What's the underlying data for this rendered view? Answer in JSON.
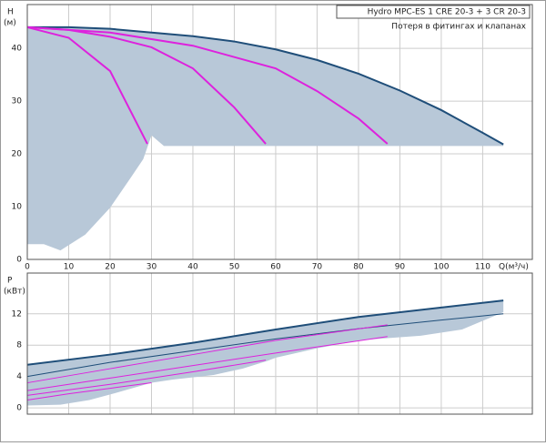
{
  "chart_data": [
    {
      "type": "line",
      "ylabel": "H",
      "yunit": "(м)",
      "xlabel": "Q(м³/ч)",
      "legend_title": "Hydro MPC-ES 1 CRE 20-3  +  3 CR 20-3",
      "legend_subtitle": "Потеря в фитингах и клапанах",
      "xlim": [
        0,
        122
      ],
      "ylim": [
        0,
        48.3
      ],
      "xticks": [
        0,
        10,
        20,
        30,
        40,
        50,
        60,
        70,
        80,
        90,
        100,
        110
      ],
      "yticks": [
        0,
        10,
        20,
        30,
        40
      ],
      "show_xtick_labels": true,
      "grid": true,
      "regions": [
        {
          "color": "#b8c8d8",
          "x": [
            0,
            10,
            20,
            30,
            40,
            50,
            60,
            70,
            80,
            90,
            100,
            110,
            115,
            115,
            40,
            33,
            30,
            28,
            25,
            20,
            14,
            8,
            4,
            0
          ],
          "values": [
            44,
            44,
            43.7,
            43,
            42.3,
            41.3,
            39.8,
            37.8,
            35.2,
            32,
            28.3,
            24,
            21.8,
            21.5,
            21.5,
            21.5,
            23.5,
            19,
            15.5,
            9.8,
            4.7,
            1.7,
            2.9,
            2.9
          ]
        }
      ],
      "series": [
        {
          "color": "#1f4e79",
          "width": 2,
          "x": [
            0,
            10,
            20,
            30,
            40,
            50,
            60,
            70,
            80,
            90,
            100,
            110,
            115
          ],
          "values": [
            44,
            44,
            43.7,
            43,
            42.3,
            41.3,
            39.8,
            37.8,
            35.2,
            32,
            28.3,
            24,
            21.8
          ]
        },
        {
          "color": "#dd22dd",
          "width": 2,
          "x": [
            0,
            10,
            20,
            29
          ],
          "values": [
            44,
            42,
            35.7,
            21.9
          ]
        },
        {
          "color": "#dd22dd",
          "width": 2,
          "x": [
            0,
            10,
            20,
            30,
            40,
            50,
            57.6
          ],
          "values": [
            44,
            43.5,
            42.2,
            40.2,
            36.2,
            28.8,
            21.9
          ]
        },
        {
          "color": "#dd22dd",
          "width": 2,
          "x": [
            0,
            20,
            40,
            60,
            70,
            80,
            87
          ],
          "values": [
            44,
            43,
            40.5,
            36.2,
            31.9,
            26.7,
            21.9
          ]
        }
      ]
    },
    {
      "type": "line",
      "ylabel": "P",
      "yunit": "(кВт)",
      "xlim": [
        0,
        122
      ],
      "ylim": [
        -0.8,
        17.2
      ],
      "xticks": [
        0,
        10,
        20,
        30,
        40,
        50,
        60,
        70,
        80,
        90,
        100,
        110
      ],
      "yticks": [
        0,
        4,
        8,
        12
      ],
      "show_xtick_labels": false,
      "grid": true,
      "regions": [
        {
          "color": "#b8c8d8",
          "x": [
            0,
            20,
            40,
            60,
            80,
            100,
            115,
            115,
            105,
            95,
            87,
            80,
            70,
            60,
            58,
            52,
            45,
            35,
            30,
            22,
            15,
            8,
            0
          ],
          "values": [
            5.5,
            6.8,
            8.3,
            10,
            11.6,
            12.8,
            13.7,
            12.2,
            10,
            9.2,
            8.9,
            8.6,
            7.6,
            6.4,
            6,
            5,
            4.2,
            3.6,
            3.2,
            2,
            1,
            0.4,
            0.3
          ]
        }
      ],
      "series": [
        {
          "color": "#1f4e79",
          "width": 2,
          "x": [
            0,
            20,
            40,
            60,
            80,
            100,
            115
          ],
          "values": [
            5.5,
            6.8,
            8.3,
            10,
            11.6,
            12.8,
            13.7
          ]
        },
        {
          "color": "#1f4e79",
          "width": 1,
          "x": [
            0,
            20,
            40,
            60,
            80,
            100,
            115
          ],
          "values": [
            4,
            5.8,
            7.3,
            8.8,
            10.1,
            11.2,
            12
          ]
        },
        {
          "color": "#dd22dd",
          "width": 1,
          "x": [
            0,
            20,
            40,
            60,
            87
          ],
          "values": [
            3.2,
            5,
            6.8,
            8.6,
            10.6
          ]
        },
        {
          "color": "#dd22dd",
          "width": 1,
          "x": [
            0,
            20,
            40,
            60,
            87
          ],
          "values": [
            2.2,
            3.8,
            5.4,
            7,
            9.1
          ]
        },
        {
          "color": "#dd22dd",
          "width": 1,
          "x": [
            0,
            20,
            40,
            57.6
          ],
          "values": [
            1.6,
            3,
            4.6,
            6.1
          ]
        },
        {
          "color": "#dd22dd",
          "width": 1,
          "x": [
            0,
            10,
            20,
            30
          ],
          "values": [
            1,
            1.8,
            2.5,
            3.2
          ]
        }
      ]
    }
  ]
}
